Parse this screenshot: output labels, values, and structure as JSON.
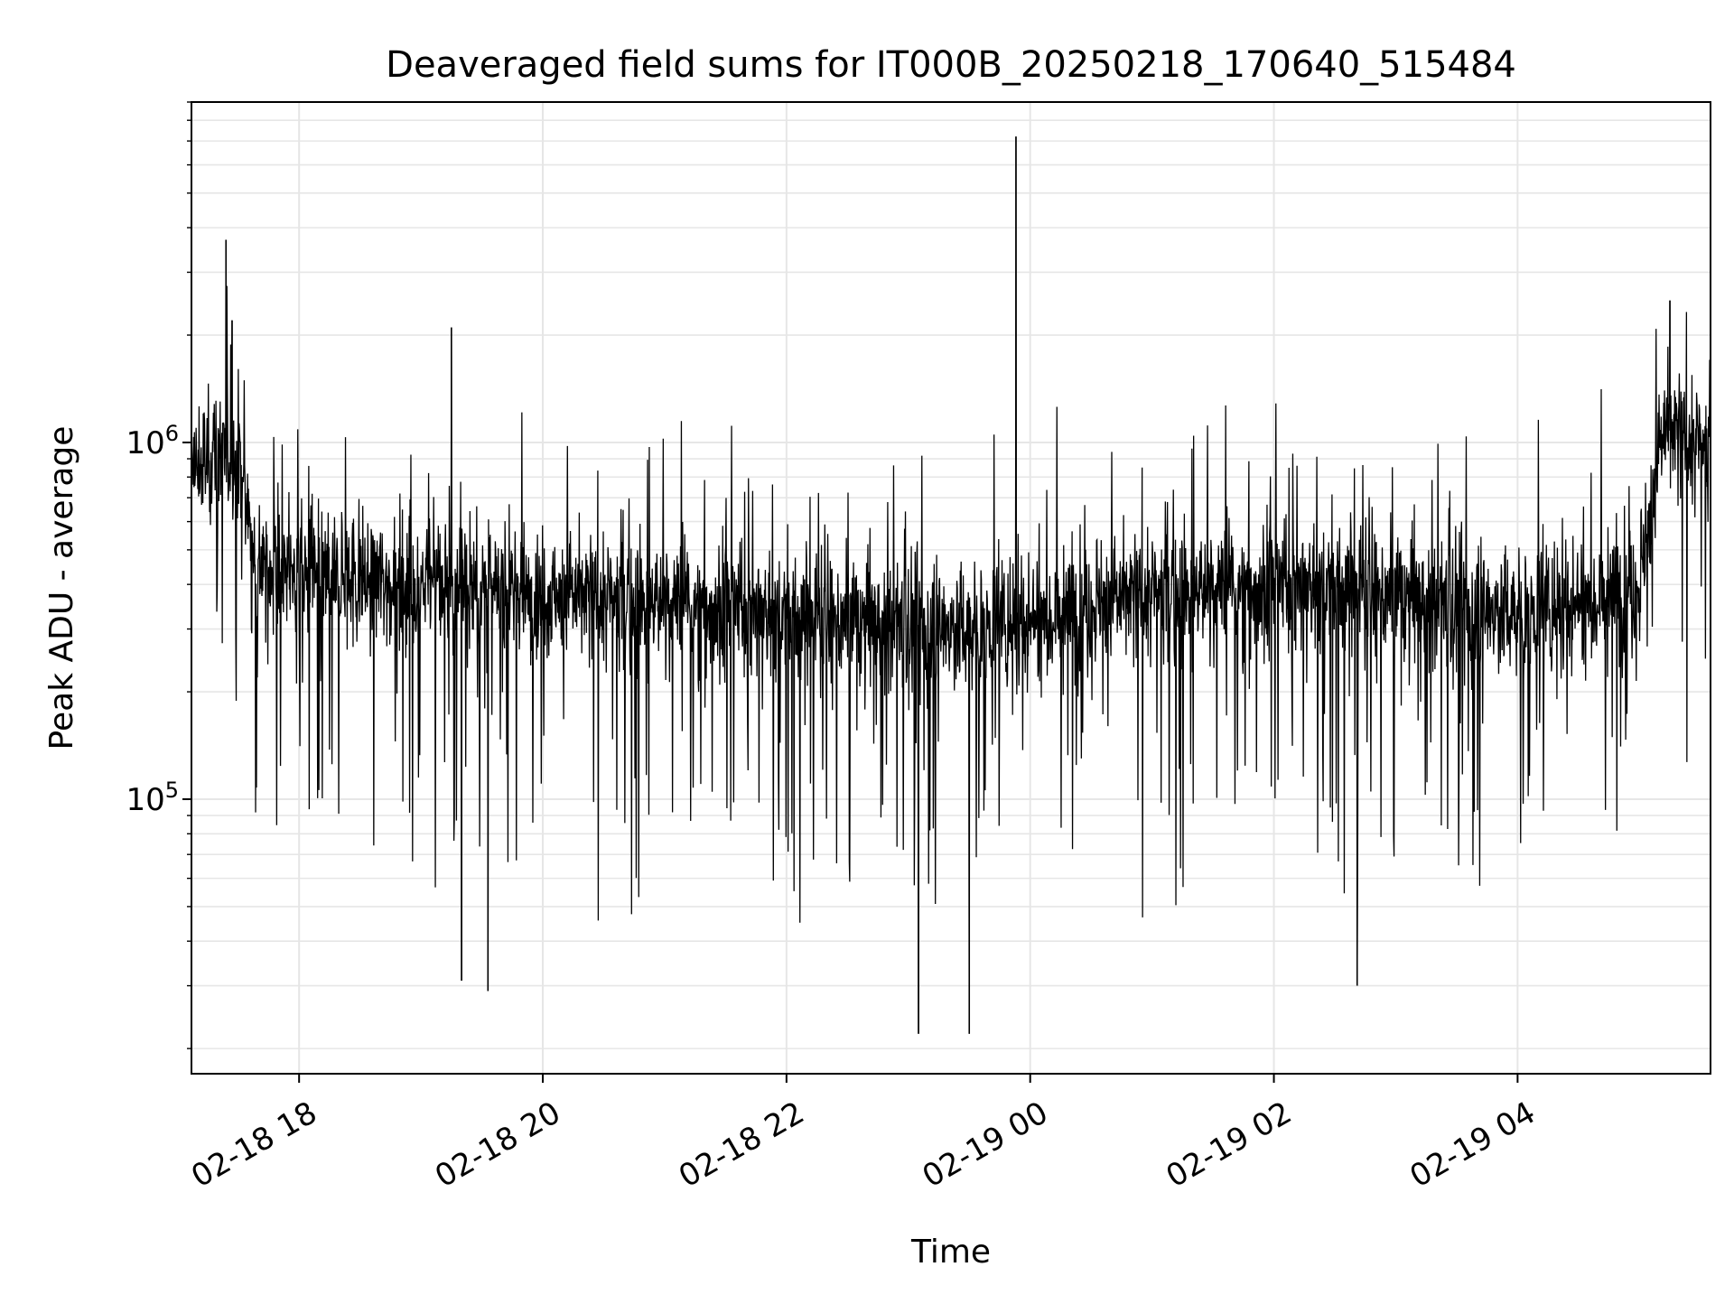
{
  "chart_data": {
    "type": "line",
    "title": "Deaveraged field sums for IT000B_20250218_170640_515484",
    "xlabel": "Time",
    "ylabel": "Peak ADU - average",
    "xlim": [
      "2025-02-18 17:07",
      "2025-02-19 05:35"
    ],
    "ylim": [
      17000,
      9000000
    ],
    "yscale": "log",
    "grid": true,
    "line_color": "#000000",
    "x_ticks": [
      {
        "value": "2025-02-18 18:00",
        "label": "02-18 18"
      },
      {
        "value": "2025-02-18 20:00",
        "label": "02-18 20"
      },
      {
        "value": "2025-02-18 22:00",
        "label": "02-18 22"
      },
      {
        "value": "2025-02-19 00:00",
        "label": "02-19 00"
      },
      {
        "value": "2025-02-19 02:00",
        "label": "02-19 02"
      },
      {
        "value": "2025-02-19 04:00",
        "label": "02-19 04"
      }
    ],
    "y_ticks": [
      {
        "value": 100000,
        "base": "10",
        "exp": "5"
      },
      {
        "value": 1000000,
        "base": "10",
        "exp": "6"
      }
    ],
    "envelope": [
      {
        "time": "2025-02-18 17:07",
        "level": 800000
      },
      {
        "time": "2025-02-18 17:20",
        "level": 950000
      },
      {
        "time": "2025-02-18 17:30",
        "level": 900000
      },
      {
        "time": "2025-02-18 17:40",
        "level": 450000
      },
      {
        "time": "2025-02-18 18:00",
        "level": 420000
      },
      {
        "time": "2025-02-18 20:00",
        "level": 380000
      },
      {
        "time": "2025-02-18 22:00",
        "level": 330000
      },
      {
        "time": "2025-02-18 23:30",
        "level": 300000
      },
      {
        "time": "2025-02-19 01:00",
        "level": 380000
      },
      {
        "time": "2025-02-19 02:30",
        "level": 400000
      },
      {
        "time": "2025-02-19 04:00",
        "level": 330000
      },
      {
        "time": "2025-02-19 05:00",
        "level": 400000
      },
      {
        "time": "2025-02-19 05:12",
        "level": 1100000
      },
      {
        "time": "2025-02-19 05:35",
        "level": 950000
      }
    ],
    "spikes": [
      {
        "time": "2025-02-18 17:24",
        "value": 3700000
      },
      {
        "time": "2025-02-18 17:27",
        "value": 2200000
      },
      {
        "time": "2025-02-18 19:15",
        "value": 2100000
      },
      {
        "time": "2025-02-18 19:20",
        "value": 31000
      },
      {
        "time": "2025-02-18 19:33",
        "value": 29000
      },
      {
        "time": "2025-02-18 23:05",
        "value": 22000
      },
      {
        "time": "2025-02-18 23:30",
        "value": 22000
      },
      {
        "time": "2025-02-18 23:53",
        "value": 7200000
      },
      {
        "time": "2025-02-19 02:41",
        "value": 30000
      },
      {
        "time": "2025-02-19 05:15",
        "value": 2500000
      }
    ]
  }
}
